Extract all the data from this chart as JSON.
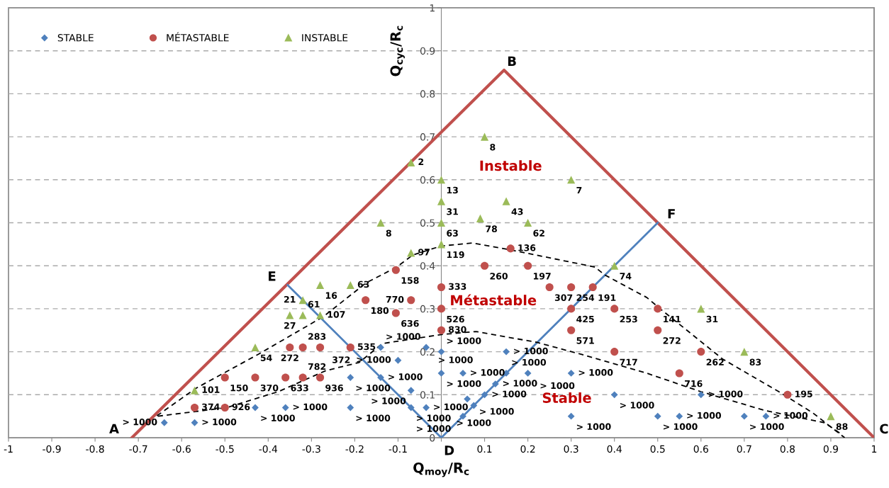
{
  "chart_data": {
    "type": "scatter",
    "xlabel": "Q$_{moy}$/R$_{c}$",
    "ylabel": "Q$_{cyc}$/R$_{c}$",
    "xlim": [
      -1,
      1
    ],
    "ylim": [
      0,
      1
    ],
    "xticks": [
      -1,
      -0.9,
      -0.8,
      -0.7,
      -0.6,
      -0.5,
      -0.4,
      -0.3,
      -0.2,
      -0.1,
      {
        "value": 0,
        "label": null
      },
      0.1,
      0.2,
      0.3,
      0.4,
      0.5,
      0.6,
      0.7,
      0.8,
      0.9,
      1
    ],
    "yticks": [
      0,
      0.1,
      0.2,
      0.3,
      0.4,
      0.5,
      0.6,
      0.7,
      0.8,
      0.9,
      1
    ],
    "grid": "y",
    "legend": "top left",
    "series": [
      {
        "name": "STABLE",
        "color": "#4f81bd",
        "marker": "diamond",
        "x": [
          -0.64,
          -0.57,
          -0.43,
          -0.36,
          -0.21,
          -0.21,
          -0.14,
          -0.14,
          -0.1,
          -0.07,
          -0.07,
          -0.035,
          -0.035,
          0,
          0,
          0.05,
          0.06,
          0.075,
          0.05,
          0.1,
          0.125,
          0.15,
          0.15,
          0.2,
          0.3,
          0.3,
          0.4,
          0.5,
          0.55,
          0.6,
          0.7,
          0.75
        ],
        "values": [
          0.035,
          0.035,
          0.07,
          0.07,
          0.07,
          0.14,
          0.14,
          0.21,
          0.18,
          0.11,
          0.07,
          0.07,
          0.21,
          0.2,
          0.15,
          0.15,
          0.09,
          0.075,
          0.05,
          0.1,
          0.125,
          0.15,
          0.2,
          0.15,
          0.15,
          0.05,
          0.1,
          0.05,
          0.05,
          0.1,
          0.05,
          0.05
        ]
      },
      {
        "name": "MÉTASTABLE",
        "color": "#c0504d",
        "marker": "circle",
        "x": [
          -0.57,
          -0.5,
          -0.5,
          -0.43,
          -0.36,
          -0.32,
          -0.28,
          -0.35,
          -0.32,
          -0.28,
          -0.21,
          -0.175,
          -0.105,
          -0.07,
          -0.105,
          0,
          0,
          0,
          0.1,
          0.2,
          0.16,
          0.25,
          0.3,
          0.35,
          0.3,
          0.3,
          0.4,
          0.4,
          0.5,
          0.5,
          0.6,
          0.55,
          0.8
        ],
        "values": [
          0.07,
          0.07,
          0.14,
          0.14,
          0.14,
          0.14,
          0.14,
          0.21,
          0.21,
          0.21,
          0.21,
          0.32,
          0.29,
          0.32,
          0.39,
          0.35,
          0.3,
          0.25,
          0.4,
          0.4,
          0.44,
          0.35,
          0.35,
          0.35,
          0.3,
          0.25,
          0.3,
          0.2,
          0.3,
          0.25,
          0.2,
          0.15,
          0.1
        ]
      },
      {
        "name": "INSTABLE",
        "color": "#9bbb59",
        "marker": "triangle",
        "x": [
          -0.57,
          -0.43,
          -0.35,
          -0.32,
          -0.28,
          -0.32,
          -0.28,
          -0.21,
          -0.07,
          -0.14,
          -0.07,
          0,
          0,
          0,
          0,
          0.1,
          0.09,
          0.15,
          0.2,
          0.3,
          0.4,
          0.6,
          0.7,
          0.9
        ],
        "values": [
          0.11,
          0.21,
          0.285,
          0.285,
          0.285,
          0.32,
          0.355,
          0.355,
          0.43,
          0.5,
          0.64,
          0.6,
          0.55,
          0.5,
          0.45,
          0.7,
          0.51,
          0.55,
          0.5,
          0.6,
          0.4,
          0.3,
          0.2,
          0.05
        ]
      },
      {
        "type": "line",
        "color": "#c0504d",
        "line_style": "solid",
        "x": [
          -0.715,
          0.145,
          1
        ],
        "values": [
          0,
          0.855,
          0
        ]
      },
      {
        "type": "line",
        "color": "#4f81bd",
        "line_style": "solid",
        "x": [
          -0.355,
          0,
          0.5
        ],
        "values": [
          0.355,
          0,
          0.5
        ]
      },
      {
        "type": "line",
        "color": "#000000",
        "line_style": "dashed",
        "x": [
          -0.657,
          -0.567,
          -0.423,
          -0.272,
          -0.174,
          -0.103,
          -0.066,
          0,
          0.072,
          0.159,
          0.355,
          0.377,
          0.475,
          0.508,
          0.65,
          0.78,
          0.858,
          0.932
        ],
        "values": [
          0.051,
          0.115,
          0.194,
          0.282,
          0.36,
          0.397,
          0.425,
          0.446,
          0.453,
          0.437,
          0.397,
          0.379,
          0.326,
          0.298,
          0.183,
          0.107,
          0.058,
          0
        ]
      },
      {
        "type": "line",
        "color": "#000000",
        "line_style": "dashed",
        "x": [
          -0.655,
          -0.496,
          -0.377,
          -0.267,
          -0.19,
          -0.136,
          0,
          0.08,
          0.22,
          0.323,
          0.475,
          0.6,
          0.749,
          0.885,
          0.925
        ],
        "values": [
          0.05,
          0.07,
          0.107,
          0.156,
          0.175,
          0.219,
          0.24,
          0.247,
          0.222,
          0.194,
          0.15,
          0.107,
          0.063,
          0.035,
          0.008
        ]
      }
    ],
    "annotations": [
      {
        "text": "A",
        "x": -0.715,
        "y": 0
      },
      {
        "text": "B",
        "x": 0.145,
        "y": 0.855
      },
      {
        "text": "C",
        "x": 1,
        "y": 0
      },
      {
        "text": "D",
        "x": 0,
        "y": 0
      },
      {
        "text": "E",
        "x": -0.355,
        "y": 0.355
      },
      {
        "text": "F",
        "x": 0.5,
        "y": 0.5
      },
      "Instable",
      "Métastable",
      "Stable",
      {
        "text": "> 1000",
        "x": -0.64,
        "y": 0.035
      },
      {
        "text": "> 1000",
        "x": -0.57,
        "y": 0.035
      },
      {
        "text": "> 1000",
        "x": -0.43,
        "y": 0.07
      },
      {
        "text": "> 1000",
        "x": -0.36,
        "y": 0.07
      },
      {
        "text": "> 1000",
        "x": -0.21,
        "y": 0.07
      },
      {
        "text": "> 1000",
        "x": -0.21,
        "y": 0.14
      },
      {
        "text": "> 1000",
        "x": -0.14,
        "y": 0.14
      },
      {
        "text": "> 1000",
        "x": -0.14,
        "y": 0.21
      },
      {
        "text": "> 1000",
        "x": -0.1,
        "y": 0.18
      },
      {
        "text": "> 1000",
        "x": -0.07,
        "y": 0.11
      },
      {
        "text": "> 1000",
        "x": -0.07,
        "y": 0.07
      },
      {
        "text": "> 1000",
        "x": -0.035,
        "y": 0.07
      },
      {
        "text": "> 1000",
        "x": -0.035,
        "y": 0.21
      },
      {
        "text": "> 1000",
        "x": 0,
        "y": 0.2
      },
      {
        "text": "> 1000",
        "x": 0,
        "y": 0.15
      },
      {
        "text": "> 1000",
        "x": 0.05,
        "y": 0.15
      },
      {
        "text": "> 1000",
        "x": 0.06,
        "y": 0.09
      },
      {
        "text": "> 1000",
        "x": 0.075,
        "y": 0.075
      },
      {
        "text": "> 1000",
        "x": 0.05,
        "y": 0.05
      },
      {
        "text": "> 1000",
        "x": 0.1,
        "y": 0.1
      },
      {
        "text": "> 1000",
        "x": 0.125,
        "y": 0.125
      },
      {
        "text": "> 1000",
        "x": 0.15,
        "y": 0.15
      },
      {
        "text": "> 1000",
        "x": 0.15,
        "y": 0.2
      },
      {
        "text": "> 1000",
        "x": 0.2,
        "y": 0.15
      },
      {
        "text": "> 1000",
        "x": 0.3,
        "y": 0.15
      },
      {
        "text": "> 1000",
        "x": 0.3,
        "y": 0.05
      },
      {
        "text": "> 1000",
        "x": 0.4,
        "y": 0.1
      },
      {
        "text": "> 1000",
        "x": 0.5,
        "y": 0.05
      },
      {
        "text": "> 1000",
        "x": 0.55,
        "y": 0.05
      },
      {
        "text": "> 1000",
        "x": 0.6,
        "y": 0.1
      },
      {
        "text": "> 1000",
        "x": 0.7,
        "y": 0.05
      },
      {
        "text": "> 1000",
        "x": 0.75,
        "y": 0.05
      },
      {
        "text": "374",
        "x": -0.57,
        "y": 0.07
      },
      {
        "text": "926",
        "x": -0.5,
        "y": 0.07
      },
      {
        "text": "150",
        "x": -0.5,
        "y": 0.14
      },
      {
        "text": "370",
        "x": -0.43,
        "y": 0.14
      },
      {
        "text": "633",
        "x": -0.36,
        "y": 0.14
      },
      {
        "text": "782",
        "x": -0.32,
        "y": 0.14
      },
      {
        "text": "936",
        "x": -0.28,
        "y": 0.14
      },
      {
        "text": "272",
        "x": -0.35,
        "y": 0.21
      },
      {
        "text": "283",
        "x": -0.32,
        "y": 0.21
      },
      {
        "text": "372",
        "x": -0.28,
        "y": 0.21
      },
      {
        "text": "535",
        "x": -0.21,
        "y": 0.21
      },
      {
        "text": "180",
        "x": -0.175,
        "y": 0.32
      },
      {
        "text": "636",
        "x": -0.105,
        "y": 0.29
      },
      {
        "text": "770",
        "x": -0.07,
        "y": 0.32
      },
      {
        "text": "158",
        "x": -0.105,
        "y": 0.39
      },
      {
        "text": "333",
        "x": 0,
        "y": 0.35
      },
      {
        "text": "526",
        "x": 0,
        "y": 0.3
      },
      {
        "text": "830",
        "x": 0,
        "y": 0.25
      },
      {
        "text": "260",
        "x": 0.1,
        "y": 0.4
      },
      {
        "text": "197",
        "x": 0.2,
        "y": 0.4
      },
      {
        "text": "136",
        "x": 0.16,
        "y": 0.44
      },
      {
        "text": "307",
        "x": 0.25,
        "y": 0.35
      },
      {
        "text": "254",
        "x": 0.3,
        "y": 0.35
      },
      {
        "text": "191",
        "x": 0.35,
        "y": 0.35
      },
      {
        "text": "425",
        "x": 0.3,
        "y": 0.3
      },
      {
        "text": "571",
        "x": 0.3,
        "y": 0.25
      },
      {
        "text": "253",
        "x": 0.4,
        "y": 0.3
      },
      {
        "text": "717",
        "x": 0.4,
        "y": 0.2
      },
      {
        "text": "141",
        "x": 0.5,
        "y": 0.3
      },
      {
        "text": "272",
        "x": 0.5,
        "y": 0.25
      },
      {
        "text": "262",
        "x": 0.6,
        "y": 0.2
      },
      {
        "text": "716",
        "x": 0.55,
        "y": 0.15
      },
      {
        "text": "195",
        "x": 0.8,
        "y": 0.1
      },
      {
        "text": "101",
        "x": -0.57,
        "y": 0.11
      },
      {
        "text": "54",
        "x": -0.43,
        "y": 0.21
      },
      {
        "text": "27",
        "x": -0.35,
        "y": 0.285
      },
      {
        "text": "61",
        "x": -0.32,
        "y": 0.285
      },
      {
        "text": "107",
        "x": -0.28,
        "y": 0.285
      },
      {
        "text": "21",
        "x": -0.32,
        "y": 0.32
      },
      {
        "text": "16",
        "x": -0.28,
        "y": 0.355
      },
      {
        "text": "63",
        "x": -0.21,
        "y": 0.355
      },
      {
        "text": "97",
        "x": -0.07,
        "y": 0.43
      },
      {
        "text": "8",
        "x": -0.14,
        "y": 0.5
      },
      {
        "text": "2",
        "x": -0.07,
        "y": 0.64
      },
      {
        "text": "13",
        "x": 0,
        "y": 0.6
      },
      {
        "text": "31",
        "x": 0,
        "y": 0.55
      },
      {
        "text": "63",
        "x": 0,
        "y": 0.5
      },
      {
        "text": "119",
        "x": 0,
        "y": 0.45
      },
      {
        "text": "8",
        "x": 0.1,
        "y": 0.7
      },
      {
        "text": "78",
        "x": 0.09,
        "y": 0.51
      },
      {
        "text": "43",
        "x": 0.15,
        "y": 0.55
      },
      {
        "text": "62",
        "x": 0.2,
        "y": 0.5
      },
      {
        "text": "7",
        "x": 0.3,
        "y": 0.6
      },
      {
        "text": "74",
        "x": 0.4,
        "y": 0.4
      },
      {
        "text": "31",
        "x": 0.6,
        "y": 0.3
      },
      {
        "text": "83",
        "x": 0.7,
        "y": 0.2
      },
      {
        "text": "88",
        "x": 0.9,
        "y": 0.05
      }
    ]
  }
}
